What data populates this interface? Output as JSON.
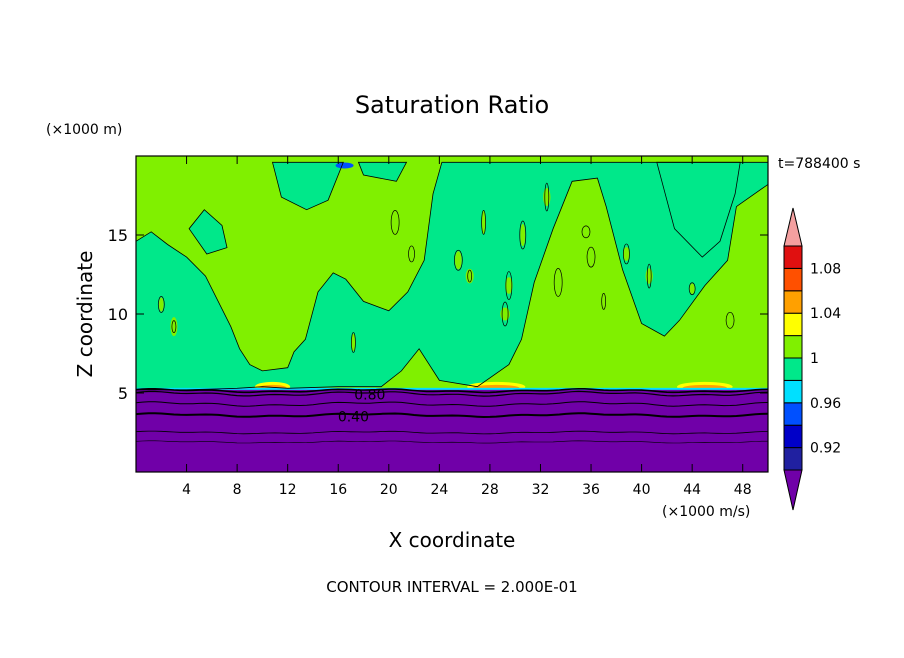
{
  "chart_data": {
    "type": "heatmap",
    "title": "Saturation Ratio",
    "xlabel": "X coordinate",
    "ylabel": "Z coordinate",
    "x_unit": "(×1000 m/s)",
    "y_unit": "(×1000 m)",
    "time_label": "t=788400 s",
    "footer": "CONTOUR INTERVAL = 2.000E-01",
    "xlim": [
      0,
      50
    ],
    "ylim": [
      0,
      20
    ],
    "x_ticks": [
      4,
      8,
      12,
      16,
      20,
      24,
      28,
      32,
      36,
      40,
      44,
      48
    ],
    "y_ticks": [
      5,
      10,
      15
    ],
    "colorbar": {
      "labels": [
        "0.92",
        "0.96",
        "1",
        "1.04",
        "1.08"
      ],
      "levels": [
        0.9,
        0.92,
        0.94,
        0.96,
        0.98,
        1.0,
        1.02,
        1.04,
        1.06,
        1.08,
        1.1
      ],
      "colors": [
        "#7000a8",
        "#2020a0",
        "#0000c8",
        "#0050ff",
        "#00e0ff",
        "#00e88a",
        "#80f000",
        "#ffff00",
        "#ffa000",
        "#ff5000",
        "#e01010",
        "#f4a0a0"
      ]
    },
    "contour_labels": [
      {
        "text": "0.80",
        "x": 18.5,
        "z": 4.9
      },
      {
        "text": "0.40",
        "x": 17.2,
        "z": 3.5
      }
    ],
    "regions": {
      "boundary_layer_top_km": 5.2,
      "boundary_layer_value": "<0.90",
      "upper_dominant_values": [
        1.0,
        1.02
      ]
    }
  }
}
